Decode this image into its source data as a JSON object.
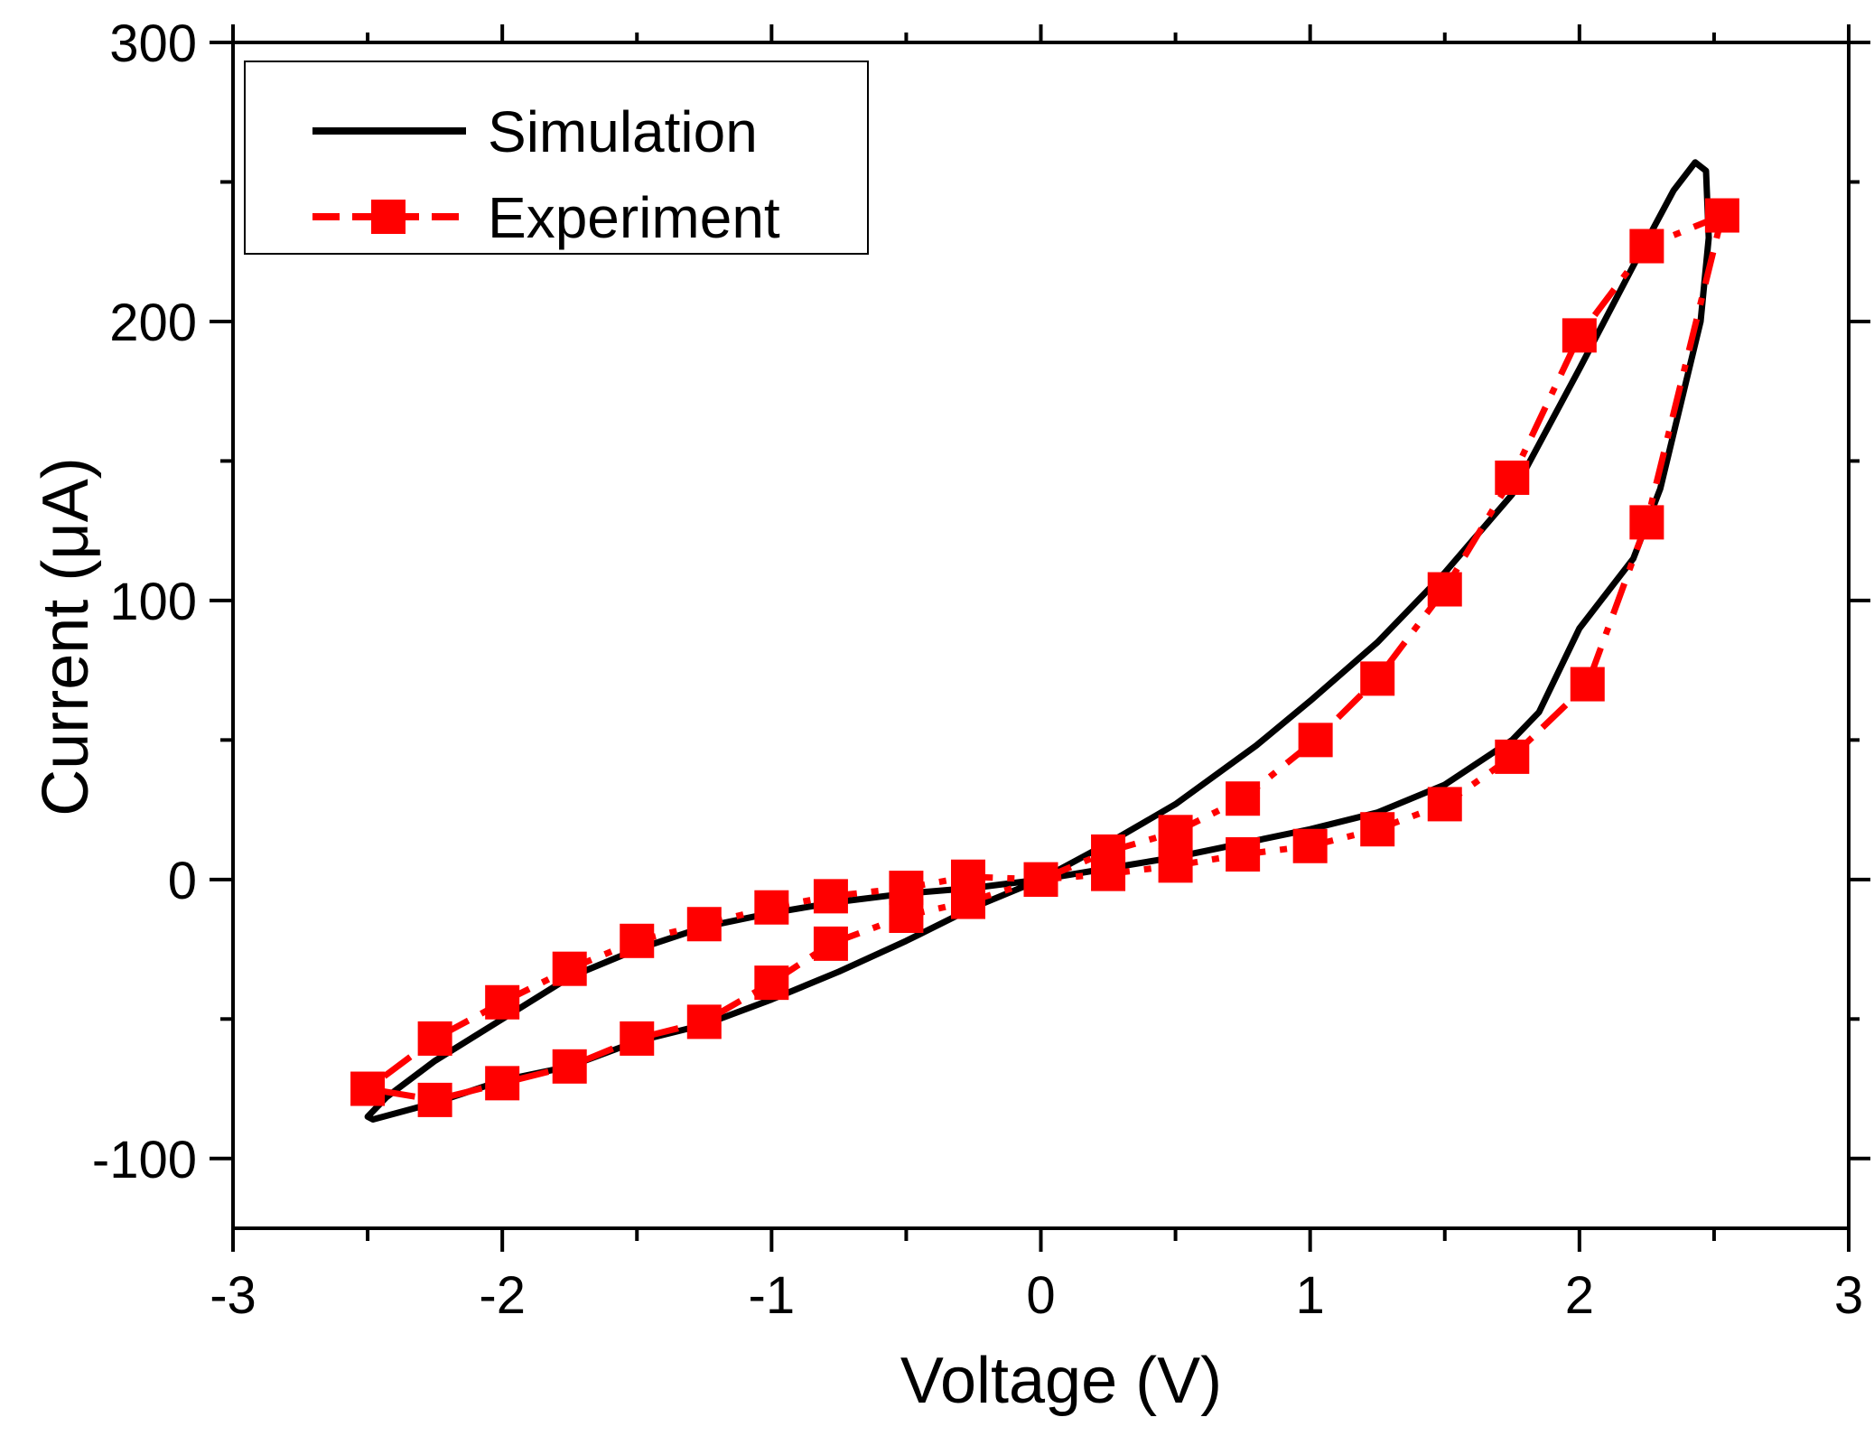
{
  "chart_data": {
    "type": "line",
    "title": "",
    "xlabel": "Voltage (V)",
    "ylabel": "Current (μA)",
    "xlim": [
      -3,
      3
    ],
    "ylim": [
      -125,
      300
    ],
    "xticks": [
      -3,
      -2,
      -1,
      0,
      1,
      2,
      3
    ],
    "xtick_labels": [
      "-3",
      "-2",
      "-1",
      "0",
      "1",
      "2",
      "3"
    ],
    "yticks": [
      -100,
      0,
      100,
      200,
      300
    ],
    "ytick_labels": [
      "-100",
      "0",
      "100",
      "200",
      "300"
    ],
    "grid": false,
    "legend_position": "top-left",
    "series": [
      {
        "name": "Simulation",
        "color": "#000000",
        "style": "solid",
        "marker": "none",
        "x": [
          0,
          0.25,
          0.5,
          0.8,
          1.0,
          1.25,
          1.5,
          1.75,
          2.0,
          2.2,
          2.35,
          2.43,
          2.47,
          2.48,
          2.45,
          2.3,
          2.2,
          2.0,
          1.85,
          1.75,
          1.5,
          1.25,
          1.0,
          0.75,
          0.5,
          0.25,
          0,
          -0.25,
          -0.5,
          -0.75,
          -1.0,
          -1.25,
          -1.5,
          -1.75,
          -2.0,
          -2.25,
          -2.43,
          -2.5,
          -2.48,
          -2.25,
          -2.0,
          -1.75,
          -1.5,
          -1.25,
          -1.0,
          -0.75,
          -0.5,
          -0.25,
          0
        ],
        "y": [
          0,
          13,
          27,
          48,
          64,
          85,
          110,
          138,
          183,
          220,
          247,
          257,
          254,
          230,
          200,
          140,
          115,
          90,
          60,
          50,
          34,
          24,
          18,
          13,
          8,
          4,
          0,
          -3,
          -5,
          -8,
          -12,
          -17,
          -25,
          -35,
          -50,
          -65,
          -78,
          -85,
          -86,
          -80,
          -72,
          -67,
          -58,
          -52,
          -43,
          -33,
          -22,
          -10,
          0
        ]
      },
      {
        "name": "Experiment",
        "color": "#ff0000",
        "style": "dashed",
        "marker": "square",
        "x": [
          0,
          0.25,
          0.5,
          0.75,
          1.02,
          1.25,
          1.5,
          1.75,
          2.0,
          2.25,
          2.53,
          2.25,
          2.03,
          1.75,
          1.5,
          1.25,
          1.0,
          0.75,
          0.5,
          0.25,
          0,
          -0.27,
          -0.5,
          -0.78,
          -1.0,
          -1.25,
          -1.5,
          -1.75,
          -2.0,
          -2.25,
          -2.5,
          -2.25,
          -2.0,
          -1.75,
          -1.5,
          -1.25,
          -1.0,
          -0.78,
          -0.5,
          -0.27,
          0
        ],
        "y": [
          0,
          10,
          17,
          29,
          50,
          72,
          104,
          144,
          195,
          227,
          238,
          128,
          70,
          44,
          27,
          18,
          12,
          9,
          5,
          2,
          0,
          1,
          -3,
          -6,
          -10,
          -16,
          -22,
          -32,
          -44,
          -57,
          -75,
          -79,
          -73,
          -67,
          -57,
          -51,
          -37,
          -23,
          -13,
          -8,
          0
        ]
      }
    ]
  }
}
